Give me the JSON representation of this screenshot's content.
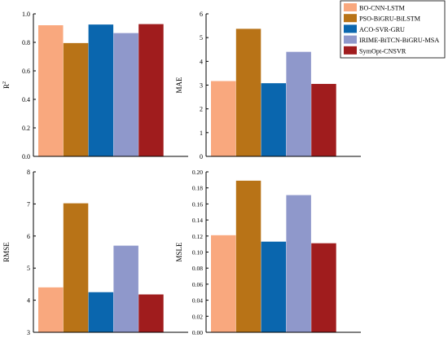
{
  "figure": {
    "legend": {
      "placement": "top-right",
      "entries": [
        {
          "label": "BO-CNN-LSTM",
          "color": "#F9A87E"
        },
        {
          "label": "PSO-BiGRU-BiLSTM",
          "color": "#B87317"
        },
        {
          "label": "ACO-SVR-GRU",
          "color": "#0A66AE"
        },
        {
          "label": "IRIME-BiTCN-BiGRU-MSA",
          "color": "#8F98CB"
        },
        {
          "label": "SymOpt-CNSVR",
          "color": "#A01C1D"
        }
      ]
    }
  },
  "chart_data": [
    {
      "type": "bar",
      "ylabel": "R",
      "ylabel_sup": "2",
      "categories": [
        "BO-CNN-LSTM",
        "PSO-BiGRU-BiLSTM",
        "ACO-SVR-GRU",
        "IRIME-BiTCN-BiGRU-MSA",
        "SymOpt-CNSVR"
      ],
      "values": [
        0.92,
        0.795,
        0.925,
        0.865,
        0.928
      ],
      "ylim": [
        0,
        1.0
      ],
      "yticks": [
        "0.0",
        "0.2",
        "0.4",
        "0.6",
        "0.8",
        "1.0"
      ],
      "grid": false
    },
    {
      "type": "bar",
      "ylabel": "MAE",
      "categories": [
        "BO-CNN-LSTM",
        "PSO-BiGRU-BiLSTM",
        "ACO-SVR-GRU",
        "IRIME-BiTCN-BiGRU-MSA",
        "SymOpt-CNSVR"
      ],
      "values": [
        3.17,
        5.37,
        3.08,
        4.4,
        3.05
      ],
      "ylim": [
        0,
        6
      ],
      "yticks": [
        "0",
        "1",
        "2",
        "3",
        "4",
        "5",
        "6"
      ],
      "grid": false
    },
    {
      "type": "bar",
      "ylabel": "RMSE",
      "categories": [
        "BO-CNN-LSTM",
        "PSO-BiGRU-BiLSTM",
        "ACO-SVR-GRU",
        "IRIME-BiTCN-BiGRU-MSA",
        "SymOpt-CNSVR"
      ],
      "values": [
        4.4,
        7.02,
        4.25,
        5.7,
        4.18
      ],
      "ylim": [
        3,
        8
      ],
      "yticks": [
        "3",
        "4",
        "5",
        "6",
        "7",
        "8"
      ],
      "grid": false
    },
    {
      "type": "bar",
      "ylabel": "MSLE",
      "categories": [
        "BO-CNN-LSTM",
        "PSO-BiGRU-BiLSTM",
        "ACO-SVR-GRU",
        "IRIME-BiTCN-BiGRU-MSA",
        "SymOpt-CNSVR"
      ],
      "values": [
        0.121,
        0.189,
        0.113,
        0.171,
        0.111
      ],
      "ylim": [
        0,
        0.2
      ],
      "yticks": [
        "0.00",
        "0.02",
        "0.04",
        "0.06",
        "0.08",
        "0.10",
        "0.12",
        "0.14",
        "0.16",
        "0.18",
        "0.20"
      ],
      "grid": false
    }
  ]
}
